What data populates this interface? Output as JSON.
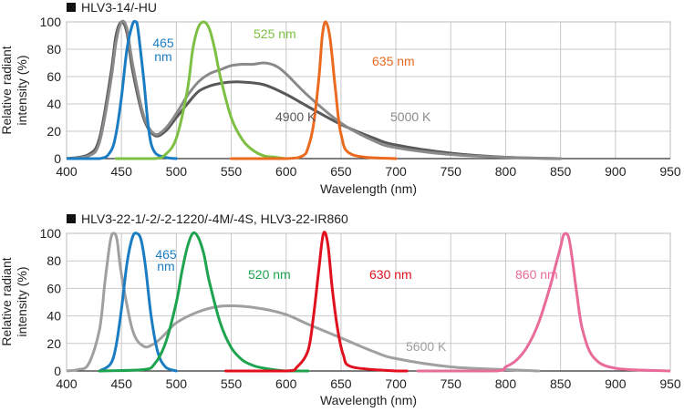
{
  "colors": {
    "grid": "#c9c9c9",
    "axis": "#333333",
    "text": "#222222",
    "blue": "#1a7cc2",
    "green_light": "#7dc043",
    "orange": "#ea6a1f",
    "gray_dark": "#595959",
    "gray_light": "#a0a0a0",
    "gray_mid": "#8a8a8a",
    "green_dark": "#1ea44f",
    "red": "#e0101e",
    "pink": "#e86b99"
  },
  "chart_data": [
    {
      "type": "line",
      "title": "HLV3-14/-HU",
      "xlabel": "Wavelength (nm)",
      "ylabel": "Relative radiant intensity (%)",
      "ylabel_lines": [
        "Relative radiant",
        "intensity (%)"
      ],
      "xlim": [
        400,
        950
      ],
      "ylim": [
        0,
        100
      ],
      "xticks": [
        400,
        450,
        500,
        550,
        600,
        650,
        700,
        750,
        800,
        850,
        900,
        950
      ],
      "yticks": [
        0,
        20,
        40,
        60,
        80,
        100
      ],
      "grid": true,
      "series": [
        {
          "name": "4900 K",
          "color": "#595959",
          "x": [
            400,
            420,
            430,
            440,
            445,
            450,
            455,
            460,
            470,
            480,
            490,
            500,
            510,
            520,
            530,
            540,
            550,
            560,
            580,
            600,
            620,
            650,
            680,
            700,
            750,
            800,
            850
          ],
          "y": [
            0,
            3,
            15,
            60,
            90,
            100,
            92,
            65,
            30,
            17,
            20,
            30,
            40,
            49,
            53,
            55,
            56,
            56,
            54,
            47,
            38,
            25,
            15,
            10,
            4,
            1,
            0
          ]
        },
        {
          "name": "5000 K",
          "color": "#8a8a8a",
          "x": [
            400,
            420,
            430,
            440,
            445,
            450,
            455,
            460,
            470,
            480,
            490,
            500,
            510,
            520,
            530,
            540,
            550,
            560,
            570,
            580,
            590,
            600,
            620,
            650,
            680,
            700,
            750,
            800,
            850
          ],
          "y": [
            0,
            2,
            12,
            55,
            85,
            100,
            95,
            70,
            32,
            18,
            22,
            33,
            46,
            56,
            62,
            65,
            68,
            69,
            69,
            70,
            68,
            62,
            46,
            26,
            13,
            8,
            3,
            1,
            0
          ]
        },
        {
          "name": "465 nm",
          "color": "#1a7cc2",
          "x": [
            400,
            430,
            440,
            445,
            450,
            455,
            460,
            463,
            465,
            470,
            475,
            480,
            490,
            500
          ],
          "y": [
            0,
            0,
            5,
            18,
            45,
            80,
            98,
            100,
            95,
            60,
            20,
            5,
            1,
            0
          ]
        },
        {
          "name": "525 nm",
          "color": "#7dc043",
          "x": [
            445,
            480,
            490,
            500,
            510,
            515,
            520,
            525,
            530,
            535,
            540,
            550,
            560,
            570,
            580,
            590,
            600
          ],
          "y": [
            0,
            0,
            3,
            15,
            50,
            80,
            96,
            100,
            95,
            80,
            60,
            30,
            14,
            6,
            2,
            1,
            0
          ]
        },
        {
          "name": "635 nm",
          "color": "#ea6a1f",
          "x": [
            550,
            600,
            615,
            620,
            625,
            630,
            633,
            636,
            640,
            645,
            650,
            660,
            700
          ],
          "y": [
            0,
            0,
            2,
            8,
            25,
            60,
            90,
            100,
            88,
            50,
            18,
            3,
            0
          ]
        }
      ]
    },
    {
      "type": "line",
      "title": "HLV3-22-1/-2/-2-1220/-4M/-4S, HLV3-22-IR860",
      "xlabel": "Wavelength (nm)",
      "ylabel": "Relative radiant intensity (%)",
      "ylabel_lines": [
        "Relative radiant",
        "intensity (%)"
      ],
      "xlim": [
        400,
        950
      ],
      "ylim": [
        0,
        100
      ],
      "xticks": [
        400,
        450,
        500,
        550,
        600,
        650,
        700,
        750,
        800,
        850,
        900,
        950
      ],
      "yticks": [
        0,
        20,
        40,
        60,
        80,
        100
      ],
      "grid": true,
      "series": [
        {
          "name": "5600 K",
          "color": "#a0a0a0",
          "x": [
            400,
            410,
            420,
            430,
            435,
            440,
            443,
            446,
            450,
            460,
            470,
            480,
            490,
            500,
            520,
            540,
            560,
            580,
            600,
            620,
            650,
            680,
            700,
            750,
            800,
            830
          ],
          "y": [
            0,
            1,
            5,
            30,
            65,
            95,
            100,
            95,
            70,
            30,
            18,
            20,
            27,
            35,
            43,
            47,
            47,
            45,
            41,
            34,
            24,
            14,
            9,
            3,
            1,
            0
          ]
        },
        {
          "name": "465 nm",
          "color": "#1a7cc2",
          "x": [
            430,
            440,
            445,
            450,
            455,
            460,
            464,
            468,
            472,
            477,
            483,
            490,
            500
          ],
          "y": [
            0,
            5,
            18,
            45,
            78,
            97,
            100,
            95,
            75,
            40,
            14,
            3,
            0
          ]
        },
        {
          "name": "520 nm",
          "color": "#1ea44f",
          "x": [
            430,
            470,
            480,
            490,
            500,
            505,
            510,
            515,
            520,
            525,
            530,
            540,
            550,
            560,
            570,
            580,
            600,
            620
          ],
          "y": [
            0,
            1,
            5,
            20,
            50,
            72,
            90,
            100,
            97,
            85,
            65,
            35,
            17,
            8,
            4,
            2,
            0,
            0
          ]
        },
        {
          "name": "630 nm",
          "color": "#e0101e",
          "x": [
            545,
            600,
            610,
            620,
            625,
            630,
            634,
            638,
            642,
            647,
            652,
            660,
            700,
            710
          ],
          "y": [
            0,
            0,
            3,
            15,
            40,
            75,
            100,
            92,
            60,
            30,
            12,
            3,
            0,
            0
          ]
        },
        {
          "name": "860 nm",
          "color": "#e86b99",
          "x": [
            720,
            790,
            800,
            810,
            820,
            830,
            840,
            845,
            850,
            853,
            857,
            860,
            865,
            870,
            880,
            900,
            950
          ],
          "y": [
            0,
            0,
            3,
            8,
            18,
            35,
            60,
            75,
            90,
            99,
            98,
            85,
            55,
            30,
            10,
            2,
            0
          ]
        }
      ]
    }
  ],
  "labels": {
    "top": [
      {
        "text": "465",
        "series": "465 nm"
      },
      {
        "text": "nm",
        "series": "465 nm"
      },
      {
        "text": "525 nm",
        "series": "525 nm"
      },
      {
        "text": "635 nm",
        "series": "635 nm"
      },
      {
        "text": "4900 K",
        "series": "4900 K"
      },
      {
        "text": "5000 K",
        "series": "5000 K"
      }
    ],
    "bottom": [
      {
        "text": "465",
        "series": "465 nm"
      },
      {
        "text": "nm",
        "series": "465 nm"
      },
      {
        "text": "520 nm",
        "series": "520 nm"
      },
      {
        "text": "630 nm",
        "series": "630 nm"
      },
      {
        "text": "860 nm",
        "series": "860 nm"
      },
      {
        "text": "5600 K",
        "series": "5600 K"
      }
    ]
  }
}
